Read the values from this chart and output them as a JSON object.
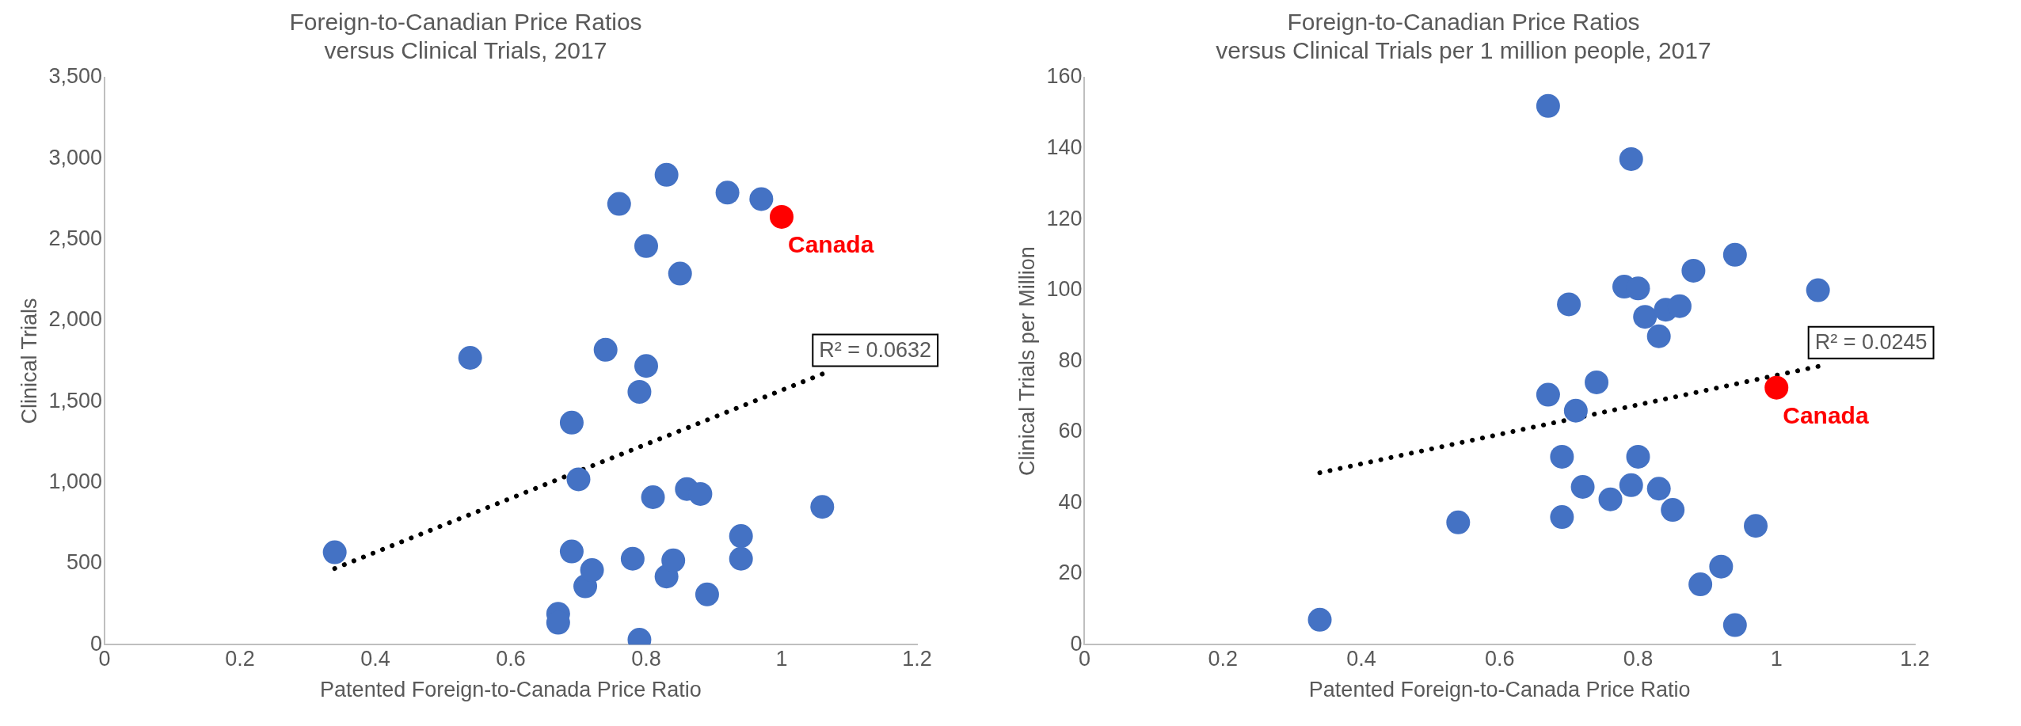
{
  "chart_data": [
    {
      "type": "scatter",
      "title": "Foreign-to-Canadian Price Ratios\nversus Clinical Trials, 2017",
      "xlabel": "Patented Foreign-to-Canada Price Ratio",
      "ylabel": "Clinical Trials",
      "xlim": [
        0,
        1.2
      ],
      "xticks": [
        0,
        0.2,
        0.4,
        0.6,
        0.8,
        1,
        1.2
      ],
      "ylim": [
        0,
        3500
      ],
      "yticks": [
        0,
        500,
        {
          "value": 1000,
          "label": "1,000"
        },
        {
          "value": 1500,
          "label": "1,500"
        },
        {
          "value": 2000,
          "label": "2,000"
        },
        {
          "value": 2500,
          "label": "2,500"
        },
        {
          "value": 3000,
          "label": "3,000"
        },
        {
          "value": 3500,
          "label": "3,500"
        }
      ],
      "grid": false,
      "legend": false,
      "marker": "circle",
      "series": [
        {
          "color": "#4472c4",
          "x": [
            0.34,
            0.54,
            0.67,
            0.67,
            0.69,
            0.69,
            0.7,
            0.71,
            0.72,
            0.74,
            0.76,
            0.78,
            0.79,
            0.79,
            0.8,
            0.8,
            0.81,
            0.83,
            0.83,
            0.84,
            0.85,
            0.86,
            0.88,
            0.89,
            0.92,
            0.94,
            0.94,
            0.97,
            1.06
          ],
          "values": [
            570,
            1770,
            190,
            135,
            575,
            1370,
            1020,
            360,
            460,
            1820,
            2720,
            530,
            30,
            1560,
            1720,
            2460,
            910,
            2900,
            420,
            520,
            2290,
            960,
            930,
            310,
            2790,
            670,
            530,
            2750,
            850
          ]
        },
        {
          "name": "Canada",
          "color": "#ff0000",
          "x": [
            1.0
          ],
          "values": [
            2640
          ]
        },
        {
          "type": "line",
          "line_style": "dotted",
          "marker": "none",
          "color": "#000000",
          "x": [
            0.34,
            1.06
          ],
          "values": [
            470,
            1670
          ]
        }
      ],
      "annotations": [
        {
          "text": "R² = 0.0632",
          "x": 1.06,
          "y": 1670
        }
      ]
    },
    {
      "type": "scatter",
      "title": "Foreign-to-Canadian Price Ratios\nversus Clinical Trials per 1 million people, 2017",
      "xlabel": "Patented Foreign-to-Canada Price Ratio",
      "ylabel": "Clinical Trials per Million",
      "xlim": [
        0,
        1.2
      ],
      "xticks": [
        0,
        0.2,
        0.4,
        0.6,
        0.8,
        1,
        1.2
      ],
      "ylim": [
        0,
        160
      ],
      "yticks": [
        0,
        20,
        40,
        60,
        80,
        100,
        120,
        140,
        160
      ],
      "grid": false,
      "legend": false,
      "marker": "circle",
      "series": [
        {
          "color": "#4472c4",
          "x": [
            0.34,
            0.54,
            0.67,
            0.67,
            0.69,
            0.69,
            0.7,
            0.71,
            0.72,
            0.74,
            0.76,
            0.78,
            0.79,
            0.79,
            0.8,
            0.8,
            0.81,
            0.83,
            0.83,
            0.84,
            0.85,
            0.86,
            0.88,
            0.89,
            0.92,
            0.94,
            0.94,
            0.97,
            1.06
          ],
          "values": [
            7,
            34.5,
            152,
            70.5,
            53,
            36,
            96,
            66,
            44.5,
            74,
            41,
            101,
            137,
            45,
            100.5,
            53,
            92.5,
            87,
            44,
            94.5,
            38,
            95.5,
            105.5,
            17,
            22,
            110,
            5.5,
            33.5,
            100
          ]
        },
        {
          "name": "Canada",
          "color": "#ff0000",
          "x": [
            1.0
          ],
          "values": [
            72.5
          ]
        },
        {
          "type": "line",
          "line_style": "dotted",
          "marker": "none",
          "color": "#000000",
          "x": [
            0.34,
            1.06
          ],
          "values": [
            48.5,
            78.5
          ]
        }
      ],
      "annotations": [
        {
          "text": "R² = 0.0245",
          "x": 1.06,
          "y": 78.5
        }
      ]
    }
  ]
}
